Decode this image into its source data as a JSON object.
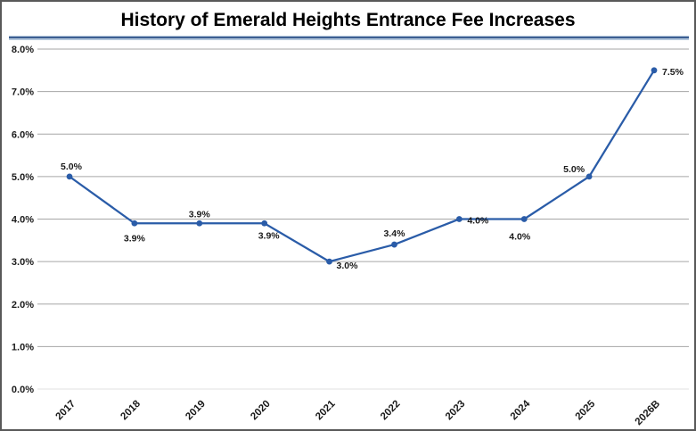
{
  "chart_data": {
    "type": "line",
    "title": "History of Emerald Heights Entrance Fee Increases",
    "categories": [
      "2017",
      "2018",
      "2019",
      "2020",
      "2021",
      "2022",
      "2023",
      "2024",
      "2025",
      "2026B"
    ],
    "values": [
      5.0,
      3.9,
      3.9,
      3.9,
      3.0,
      3.4,
      4.0,
      4.0,
      5.0,
      7.5
    ],
    "point_labels": [
      "5.0%",
      "3.9%",
      "3.9%",
      "3.9%",
      "3.0%",
      "3.4%",
      "4.0%",
      "4.0%",
      "5.0%",
      "7.5%"
    ],
    "xlabel": "",
    "ylabel": "",
    "ylim": [
      0,
      8
    ],
    "y_tick_step": 1,
    "y_tick_labels": [
      "0.0%",
      "1.0%",
      "2.0%",
      "3.0%",
      "4.0%",
      "5.0%",
      "6.0%",
      "7.0%",
      "8.0%"
    ],
    "grid": true,
    "legend": false,
    "colors": {
      "line": "#2a5ca8",
      "marker": "#2a5ca8",
      "gridline": "#a6a6a6",
      "baseline": "#e2e2e2",
      "title_text": "#000000",
      "title_rule_dark": "#3d5f92",
      "title_rule_light": "#b4c7dc",
      "frame_border": "#595959",
      "label_text": "#1a1a1a"
    }
  }
}
